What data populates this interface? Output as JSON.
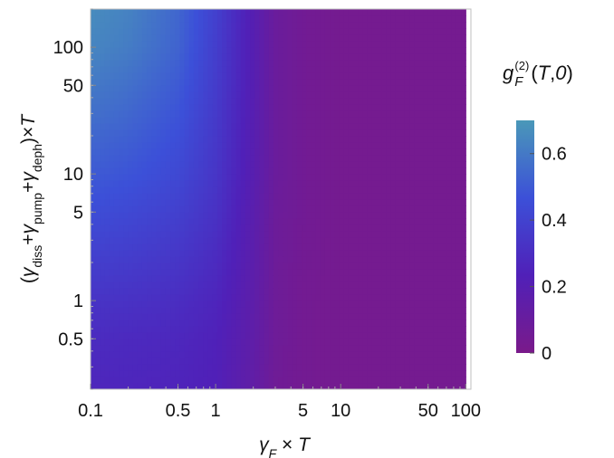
{
  "chart_data": {
    "type": "heatmap",
    "title": "",
    "xlabel": "γ_F × T",
    "ylabel": "(γ_diss + γ_pump + γ_deph) × T",
    "x_scale": "log",
    "y_scale": "log",
    "xlim": [
      0.1,
      110
    ],
    "ylim": [
      0.2,
      200
    ],
    "x_ticks": [
      {
        "value": 0.1,
        "label": "0.1"
      },
      {
        "value": 0.5,
        "label": "0.5"
      },
      {
        "value": 1,
        "label": "1"
      },
      {
        "value": 5,
        "label": "5"
      },
      {
        "value": 10,
        "label": "10"
      },
      {
        "value": 50,
        "label": "50"
      },
      {
        "value": 100,
        "label": "100"
      }
    ],
    "y_ticks": [
      {
        "value": 0.5,
        "label": "0.5"
      },
      {
        "value": 1,
        "label": "1"
      },
      {
        "value": 5,
        "label": "5"
      },
      {
        "value": 10,
        "label": "10"
      },
      {
        "value": 50,
        "label": "50"
      },
      {
        "value": 100,
        "label": "100"
      }
    ],
    "x": [
      0.1,
      0.2,
      0.5,
      1,
      2,
      3,
      5,
      10,
      20,
      50,
      100
    ],
    "y": [
      0.2,
      0.5,
      1,
      5,
      10,
      50,
      100,
      200
    ],
    "z": [
      [
        0.26,
        0.26,
        0.25,
        0.23,
        0.14,
        0.06,
        0.04,
        0.03,
        0.03,
        0.03,
        0.03
      ],
      [
        0.29,
        0.28,
        0.27,
        0.24,
        0.15,
        0.07,
        0.04,
        0.03,
        0.03,
        0.03,
        0.03
      ],
      [
        0.33,
        0.32,
        0.3,
        0.26,
        0.16,
        0.07,
        0.04,
        0.03,
        0.03,
        0.03,
        0.03
      ],
      [
        0.45,
        0.43,
        0.39,
        0.32,
        0.18,
        0.08,
        0.05,
        0.03,
        0.03,
        0.03,
        0.03
      ],
      [
        0.5,
        0.48,
        0.43,
        0.34,
        0.19,
        0.09,
        0.05,
        0.03,
        0.03,
        0.03,
        0.03
      ],
      [
        0.6,
        0.57,
        0.5,
        0.37,
        0.2,
        0.09,
        0.05,
        0.03,
        0.03,
        0.03,
        0.03
      ],
      [
        0.64,
        0.61,
        0.53,
        0.38,
        0.2,
        0.09,
        0.05,
        0.03,
        0.03,
        0.03,
        0.03
      ],
      [
        0.66,
        0.63,
        0.54,
        0.39,
        0.2,
        0.09,
        0.05,
        0.03,
        0.03,
        0.03,
        0.03
      ]
    ],
    "colorbar": {
      "title": "g_F^(2)(T,0)",
      "range": [
        0,
        0.7
      ],
      "ticks": [
        {
          "value": 0,
          "label": "0"
        },
        {
          "value": 0.2,
          "label": "0.2"
        },
        {
          "value": 0.4,
          "label": "0.4"
        },
        {
          "value": 0.6,
          "label": "0.6"
        }
      ],
      "colors": [
        "#7a1a8a",
        "#5020b8",
        "#3c50d8",
        "#4a98b8"
      ]
    },
    "grid": false,
    "legend": "right"
  }
}
